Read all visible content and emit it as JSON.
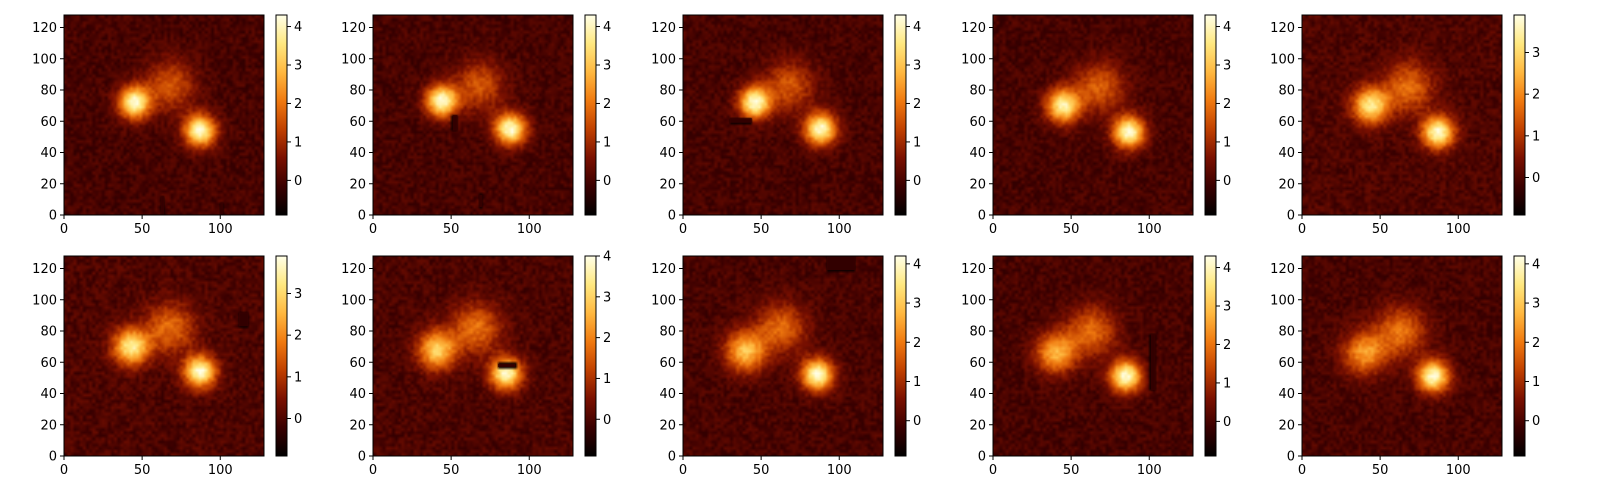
{
  "figure": {
    "rows": 2,
    "cols": 5
  },
  "colormap": {
    "name": "afmhot",
    "stops": [
      "#000000",
      "#3a0000",
      "#7a1000",
      "#c04000",
      "#f07a10",
      "#ffb840",
      "#ffe880",
      "#ffffe8"
    ]
  },
  "chart_data": [
    {
      "type": "heatmap",
      "panel": 1,
      "xlim": [
        0,
        128
      ],
      "ylim": [
        0,
        128
      ],
      "xticks": [
        0,
        50,
        100
      ],
      "yticks": [
        0,
        20,
        40,
        60,
        80,
        100,
        120
      ],
      "vmin": -0.9,
      "vmax": 4.3,
      "cbar_ticks": [
        0,
        1,
        2,
        3,
        4
      ],
      "sources": [
        {
          "x": 45,
          "y": 72,
          "peak": 4.2,
          "sigma": 7
        },
        {
          "x": 87,
          "y": 54,
          "peak": 4.2,
          "sigma": 7
        },
        {
          "x": 68,
          "y": 83,
          "peak": 1.6,
          "sigma": 11
        }
      ],
      "masks": [
        {
          "x": [
            62,
            64
          ],
          "y": [
            0,
            12
          ]
        },
        {
          "x": [
            100,
            102
          ],
          "y": [
            0,
            8
          ]
        }
      ]
    },
    {
      "type": "heatmap",
      "panel": 2,
      "xlim": [
        0,
        128
      ],
      "ylim": [
        0,
        128
      ],
      "xticks": [
        0,
        50,
        100
      ],
      "yticks": [
        0,
        20,
        40,
        60,
        80,
        100,
        120
      ],
      "vmin": -0.9,
      "vmax": 4.3,
      "cbar_ticks": [
        0,
        1,
        2,
        3,
        4
      ],
      "sources": [
        {
          "x": 44,
          "y": 73,
          "peak": 4.2,
          "sigma": 7
        },
        {
          "x": 88,
          "y": 55,
          "peak": 4.2,
          "sigma": 7
        },
        {
          "x": 68,
          "y": 83,
          "peak": 1.6,
          "sigma": 11
        }
      ],
      "masks": [
        {
          "x": [
            51,
            54
          ],
          "y": [
            54,
            64
          ]
        },
        {
          "x": [
            68,
            70
          ],
          "y": [
            5,
            13
          ]
        }
      ]
    },
    {
      "type": "heatmap",
      "panel": 3,
      "xlim": [
        0,
        128
      ],
      "ylim": [
        0,
        128
      ],
      "xticks": [
        0,
        50,
        100
      ],
      "yticks": [
        0,
        20,
        40,
        60,
        80,
        100,
        120
      ],
      "vmin": -0.9,
      "vmax": 4.3,
      "cbar_ticks": [
        0,
        1,
        2,
        3,
        4
      ],
      "sources": [
        {
          "x": 46,
          "y": 72,
          "peak": 4.2,
          "sigma": 7
        },
        {
          "x": 88,
          "y": 55,
          "peak": 4.2,
          "sigma": 7
        },
        {
          "x": 68,
          "y": 83,
          "peak": 1.6,
          "sigma": 11
        }
      ],
      "masks": [
        {
          "x": [
            30,
            44
          ],
          "y": [
            59,
            62
          ]
        }
      ]
    },
    {
      "type": "heatmap",
      "panel": 4,
      "xlim": [
        0,
        128
      ],
      "ylim": [
        0,
        128
      ],
      "xticks": [
        0,
        50,
        100
      ],
      "yticks": [
        0,
        20,
        40,
        60,
        80,
        100,
        120
      ],
      "vmin": -0.9,
      "vmax": 4.3,
      "cbar_ticks": [
        0,
        1,
        2,
        3,
        4
      ],
      "sources": [
        {
          "x": 45,
          "y": 70,
          "peak": 3.8,
          "sigma": 7.5
        },
        {
          "x": 87,
          "y": 53,
          "peak": 4.2,
          "sigma": 7
        },
        {
          "x": 68,
          "y": 82,
          "peak": 1.7,
          "sigma": 11
        }
      ],
      "masks": []
    },
    {
      "type": "heatmap",
      "panel": 5,
      "xlim": [
        0,
        128
      ],
      "ylim": [
        0,
        128
      ],
      "xticks": [
        0,
        50,
        100
      ],
      "yticks": [
        0,
        20,
        40,
        60,
        80,
        100,
        120
      ],
      "vmin": -0.9,
      "vmax": 3.9,
      "cbar_ticks": [
        0,
        1,
        2,
        3
      ],
      "sources": [
        {
          "x": 44,
          "y": 70,
          "peak": 3.3,
          "sigma": 8
        },
        {
          "x": 87,
          "y": 53,
          "peak": 3.8,
          "sigma": 7
        },
        {
          "x": 68,
          "y": 82,
          "peak": 1.7,
          "sigma": 11
        }
      ],
      "masks": []
    },
    {
      "type": "heatmap",
      "panel": 6,
      "xlim": [
        0,
        128
      ],
      "ylim": [
        0,
        128
      ],
      "xticks": [
        0,
        50,
        100
      ],
      "yticks": [
        0,
        20,
        40,
        60,
        80,
        100,
        120
      ],
      "vmin": -0.9,
      "vmax": 3.9,
      "cbar_ticks": [
        0,
        1,
        2,
        3
      ],
      "sources": [
        {
          "x": 43,
          "y": 70,
          "peak": 3.4,
          "sigma": 8
        },
        {
          "x": 87,
          "y": 54,
          "peak": 3.8,
          "sigma": 7
        },
        {
          "x": 68,
          "y": 82,
          "peak": 1.7,
          "sigma": 11
        }
      ],
      "masks": [
        {
          "x": [
            112,
            118
          ],
          "y": [
            83,
            92
          ]
        }
      ]
    },
    {
      "type": "heatmap",
      "panel": 7,
      "xlim": [
        0,
        128
      ],
      "ylim": [
        0,
        128
      ],
      "xticks": [
        0,
        50,
        100
      ],
      "yticks": [
        0,
        20,
        40,
        60,
        80,
        100,
        120
      ],
      "vmin": -0.9,
      "vmax": 4.0,
      "cbar_ticks": [
        0,
        1,
        2,
        3,
        4
      ],
      "sources": [
        {
          "x": 41,
          "y": 68,
          "peak": 3.0,
          "sigma": 8.5
        },
        {
          "x": 85,
          "y": 53,
          "peak": 3.9,
          "sigma": 7
        },
        {
          "x": 66,
          "y": 82,
          "peak": 1.8,
          "sigma": 11
        }
      ],
      "masks": [
        {
          "x": [
            80,
            91
          ],
          "y": [
            57,
            59
          ]
        }
      ]
    },
    {
      "type": "heatmap",
      "panel": 8,
      "xlim": [
        0,
        128
      ],
      "ylim": [
        0,
        128
      ],
      "xticks": [
        0,
        50,
        100
      ],
      "yticks": [
        0,
        20,
        40,
        60,
        80,
        100,
        120
      ],
      "vmin": -0.9,
      "vmax": 4.2,
      "cbar_ticks": [
        0,
        1,
        2,
        3,
        4
      ],
      "sources": [
        {
          "x": 40,
          "y": 67,
          "peak": 2.9,
          "sigma": 9
        },
        {
          "x": 86,
          "y": 52,
          "peak": 4.1,
          "sigma": 7
        },
        {
          "x": 63,
          "y": 82,
          "peak": 1.8,
          "sigma": 11
        }
      ],
      "masks": [
        {
          "x": [
            92,
            110
          ],
          "y": [
            119,
            128
          ]
        }
      ]
    },
    {
      "type": "heatmap",
      "panel": 9,
      "xlim": [
        0,
        128
      ],
      "ylim": [
        0,
        128
      ],
      "xticks": [
        0,
        50,
        100
      ],
      "yticks": [
        0,
        20,
        40,
        60,
        80,
        100,
        120
      ],
      "vmin": -0.9,
      "vmax": 4.3,
      "cbar_ticks": [
        0,
        1,
        2,
        3,
        4
      ],
      "sources": [
        {
          "x": 40,
          "y": 66,
          "peak": 2.7,
          "sigma": 9
        },
        {
          "x": 85,
          "y": 51,
          "peak": 4.2,
          "sigma": 7
        },
        {
          "x": 63,
          "y": 80,
          "peak": 1.9,
          "sigma": 11
        }
      ],
      "masks": [
        {
          "x": [
            101,
            104
          ],
          "y": [
            42,
            78
          ]
        }
      ]
    },
    {
      "type": "heatmap",
      "panel": 10,
      "xlim": [
        0,
        128
      ],
      "ylim": [
        0,
        128
      ],
      "xticks": [
        0,
        50,
        100
      ],
      "yticks": [
        0,
        20,
        40,
        60,
        80,
        100,
        120
      ],
      "vmin": -0.9,
      "vmax": 4.2,
      "cbar_ticks": [
        0,
        1,
        2,
        3,
        4
      ],
      "sources": [
        {
          "x": 40,
          "y": 66,
          "peak": 2.4,
          "sigma": 9.5
        },
        {
          "x": 84,
          "y": 51,
          "peak": 4.1,
          "sigma": 7
        },
        {
          "x": 63,
          "y": 80,
          "peak": 1.9,
          "sigma": 11
        }
      ],
      "masks": []
    }
  ]
}
